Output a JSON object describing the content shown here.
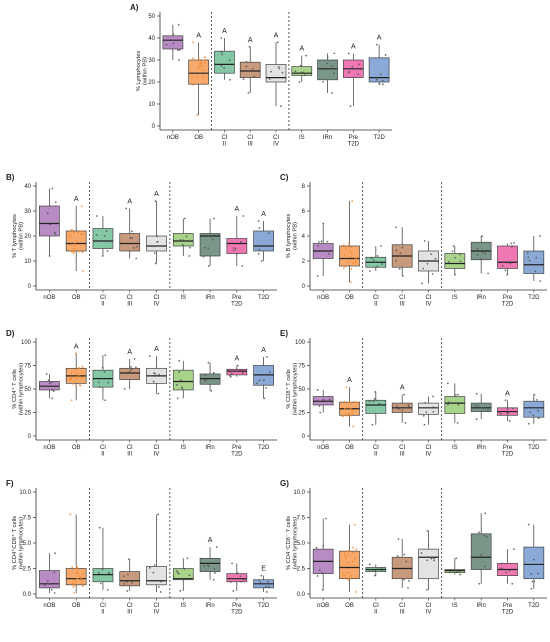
{
  "figure": {
    "groups": [
      "nOB",
      "OB",
      "CI II",
      "CI III",
      "CI IV",
      "IS",
      "IRn",
      "Pre T2D",
      "T2D"
    ],
    "group_colors": [
      "#b98bc4",
      "#f7a96b",
      "#84c8a6",
      "#c79a7e",
      "#e3e3e3",
      "#a9d38a",
      "#7a9688",
      "#ef78b3",
      "#8aa9d6"
    ],
    "point_color": "#f28a2e"
  },
  "chart_data": [
    {
      "panel": "A)",
      "type": "box",
      "ylabel": "% Lymphocytes\n(within PB)",
      "ylim": [
        0,
        50
      ],
      "yticks": [
        0,
        10,
        20,
        30,
        40,
        50
      ],
      "boxes": [
        {
          "q1": 35,
          "median": 39,
          "q3": 41,
          "whislo": 30,
          "whishi": 46,
          "letter": ""
        },
        {
          "q1": 19,
          "median": 24,
          "q3": 30,
          "whislo": 5,
          "whishi": 38,
          "letter": "A"
        },
        {
          "q1": 24,
          "median": 28,
          "q3": 34,
          "whislo": 21,
          "whishi": 40,
          "letter": "A"
        },
        {
          "q1": 22,
          "median": 25,
          "q3": 29,
          "whislo": 15,
          "whishi": 36,
          "letter": "A"
        },
        {
          "q1": 20,
          "median": 22,
          "q3": 28,
          "whislo": 9,
          "whishi": 38,
          "letter": "A"
        },
        {
          "q1": 23,
          "median": 24,
          "q3": 27,
          "whislo": 20,
          "whishi": 32,
          "letter": "A"
        },
        {
          "q1": 21,
          "median": 26,
          "q3": 30,
          "whislo": 15,
          "whishi": 33,
          "letter": ""
        },
        {
          "q1": 22,
          "median": 26,
          "q3": 30,
          "whislo": 9,
          "whishi": 33,
          "letter": "A"
        },
        {
          "q1": 20,
          "median": 22,
          "q3": 31,
          "whislo": 19,
          "whishi": 37,
          "letter": "A"
        }
      ]
    },
    {
      "panel": "B)",
      "type": "box",
      "ylabel": "% T lymphocytes\n(within PB)",
      "ylim": [
        0,
        40
      ],
      "yticks": [
        0,
        10,
        20,
        30,
        40
      ],
      "boxes": [
        {
          "q1": 20,
          "median": 25,
          "q3": 32,
          "whislo": 12,
          "whishi": 39,
          "letter": ""
        },
        {
          "q1": 14,
          "median": 17,
          "q3": 22,
          "whislo": 6,
          "whishi": 32,
          "letter": "A"
        },
        {
          "q1": 15,
          "median": 18,
          "q3": 23,
          "whislo": 12,
          "whishi": 28,
          "letter": ""
        },
        {
          "q1": 14,
          "median": 17,
          "q3": 21,
          "whislo": 11,
          "whishi": 31,
          "letter": "A"
        },
        {
          "q1": 14,
          "median": 16,
          "q3": 20,
          "whislo": 9,
          "whishi": 34,
          "letter": "A"
        },
        {
          "q1": 16,
          "median": 18,
          "q3": 21,
          "whislo": 12,
          "whishi": 27,
          "letter": ""
        },
        {
          "q1": 12,
          "median": 20,
          "q3": 21,
          "whislo": 8,
          "whishi": 27,
          "letter": ""
        },
        {
          "q1": 13,
          "median": 17,
          "q3": 19,
          "whislo": 8,
          "whishi": 28,
          "letter": "A"
        },
        {
          "q1": 14,
          "median": 16,
          "q3": 22,
          "whislo": 10,
          "whishi": 26,
          "letter": "A"
        }
      ]
    },
    {
      "panel": "C)",
      "type": "box",
      "ylabel": "% B lymphocytes\n(within PB)",
      "ylim": [
        0,
        8
      ],
      "yticks": [
        0,
        2,
        4,
        6,
        8
      ],
      "boxes": [
        {
          "q1": 2.2,
          "median": 2.8,
          "q3": 3.4,
          "whislo": 0.8,
          "whishi": 5.0,
          "letter": ""
        },
        {
          "q1": 1.6,
          "median": 2.2,
          "q3": 3.2,
          "whislo": 0.3,
          "whishi": 6.8,
          "letter": ""
        },
        {
          "q1": 1.5,
          "median": 1.9,
          "q3": 2.3,
          "whislo": 1.2,
          "whishi": 3.2,
          "letter": ""
        },
        {
          "q1": 1.5,
          "median": 2.4,
          "q3": 3.3,
          "whislo": 0.8,
          "whishi": 4.7,
          "letter": ""
        },
        {
          "q1": 1.2,
          "median": 2.0,
          "q3": 2.8,
          "whislo": 0.2,
          "whishi": 3.6,
          "letter": ""
        },
        {
          "q1": 1.4,
          "median": 1.8,
          "q3": 2.6,
          "whislo": 0.9,
          "whishi": 3.2,
          "letter": ""
        },
        {
          "q1": 2.1,
          "median": 2.8,
          "q3": 3.5,
          "whislo": 1.0,
          "whishi": 4.0,
          "letter": ""
        },
        {
          "q1": 1.4,
          "median": 1.9,
          "q3": 3.2,
          "whislo": 0.9,
          "whishi": 3.4,
          "letter": ""
        },
        {
          "q1": 1.0,
          "median": 1.7,
          "q3": 2.8,
          "whislo": 0.4,
          "whishi": 4.0,
          "letter": ""
        }
      ]
    },
    {
      "panel": "D)",
      "type": "box",
      "ylabel": "% CD4⁺ T cells\n(within lymphocytes)",
      "ylim": [
        0,
        100
      ],
      "yticks": [
        0,
        25,
        50,
        75,
        100
      ],
      "boxes": [
        {
          "q1": 49,
          "median": 53,
          "q3": 58,
          "whislo": 40,
          "whishi": 66,
          "letter": ""
        },
        {
          "q1": 56,
          "median": 64,
          "q3": 72,
          "whislo": 38,
          "whishi": 88,
          "letter": "A"
        },
        {
          "q1": 52,
          "median": 61,
          "q3": 70,
          "whislo": 38,
          "whishi": 86,
          "letter": ""
        },
        {
          "q1": 60,
          "median": 67,
          "q3": 72,
          "whislo": 50,
          "whishi": 82,
          "letter": "A"
        },
        {
          "q1": 56,
          "median": 64,
          "q3": 72,
          "whislo": 45,
          "whishi": 85,
          "letter": "A"
        },
        {
          "q1": 49,
          "median": 58,
          "q3": 70,
          "whislo": 40,
          "whishi": 80,
          "letter": ""
        },
        {
          "q1": 55,
          "median": 61,
          "q3": 66,
          "whislo": 48,
          "whishi": 78,
          "letter": ""
        },
        {
          "q1": 65,
          "median": 69,
          "q3": 71,
          "whislo": 63,
          "whishi": 75,
          "letter": "A"
        },
        {
          "q1": 54,
          "median": 65,
          "q3": 75,
          "whislo": 40,
          "whishi": 84,
          "letter": "A"
        }
      ]
    },
    {
      "panel": "E)",
      "type": "box",
      "ylabel": "% CD8⁺ T cells\n(within lymphocytes)",
      "ylim": [
        0,
        100
      ],
      "yticks": [
        0,
        25,
        50,
        75,
        100
      ],
      "boxes": [
        {
          "q1": 33,
          "median": 37,
          "q3": 42,
          "whislo": 25,
          "whishi": 49,
          "letter": ""
        },
        {
          "q1": 22,
          "median": 29,
          "q3": 36,
          "whislo": 10,
          "whishi": 52,
          "letter": "A"
        },
        {
          "q1": 24,
          "median": 33,
          "q3": 38,
          "whislo": 12,
          "whishi": 47,
          "letter": ""
        },
        {
          "q1": 25,
          "median": 30,
          "q3": 35,
          "whislo": 14,
          "whishi": 44,
          "letter": "A"
        },
        {
          "q1": 23,
          "median": 30,
          "q3": 35,
          "whislo": 12,
          "whishi": 42,
          "letter": ""
        },
        {
          "q1": 24,
          "median": 35,
          "q3": 42,
          "whislo": 14,
          "whishi": 56,
          "letter": ""
        },
        {
          "q1": 26,
          "median": 30,
          "q3": 35,
          "whislo": 18,
          "whishi": 45,
          "letter": ""
        },
        {
          "q1": 22,
          "median": 26,
          "q3": 30,
          "whislo": 16,
          "whishi": 38,
          "letter": "A"
        },
        {
          "q1": 20,
          "median": 30,
          "q3": 37,
          "whislo": 13,
          "whishi": 44,
          "letter": ""
        }
      ]
    },
    {
      "panel": "F)",
      "type": "box",
      "ylabel": "% CD4⁺CD8⁺ T cells\n(within lymphocytes)",
      "ylim": [
        0,
        10
      ],
      "yticks": [
        0.0,
        2.5,
        5.0,
        7.5,
        10.0
      ],
      "boxes": [
        {
          "q1": 0.6,
          "median": 1.0,
          "q3": 2.3,
          "whislo": 0.1,
          "whishi": 4.0,
          "letter": ""
        },
        {
          "q1": 0.9,
          "median": 1.5,
          "q3": 2.5,
          "whislo": 0.1,
          "whishi": 7.8,
          "letter": ""
        },
        {
          "q1": 1.2,
          "median": 1.9,
          "q3": 2.5,
          "whislo": 0.4,
          "whishi": 6.5,
          "letter": ""
        },
        {
          "q1": 0.8,
          "median": 1.3,
          "q3": 2.2,
          "whislo": 0.3,
          "whishi": 3.4,
          "letter": ""
        },
        {
          "q1": 0.9,
          "median": 1.3,
          "q3": 2.7,
          "whislo": 0.2,
          "whishi": 7.8,
          "letter": ""
        },
        {
          "q1": 1.4,
          "median": 1.5,
          "q3": 2.5,
          "whislo": 0.3,
          "whishi": 3.5,
          "letter": ""
        },
        {
          "q1": 2.2,
          "median": 3.0,
          "q3": 3.5,
          "whislo": 1.4,
          "whishi": 4.6,
          "letter": "A"
        },
        {
          "q1": 1.2,
          "median": 1.5,
          "q3": 2.0,
          "whislo": 0.3,
          "whishi": 3.0,
          "letter": ""
        },
        {
          "q1": 0.6,
          "median": 1.0,
          "q3": 1.4,
          "whislo": 0.2,
          "whishi": 1.8,
          "letter": "E"
        }
      ]
    },
    {
      "panel": "G)",
      "type": "box",
      "ylabel": "% CD4⁻CD8⁻ T cells\n(within lymphocytes)",
      "ylim": [
        0,
        10
      ],
      "yticks": [
        0.0,
        2.5,
        5.0,
        7.5,
        10.0
      ],
      "boxes": [
        {
          "q1": 2.0,
          "median": 3.2,
          "q3": 4.4,
          "whislo": 0.4,
          "whishi": 7.4,
          "letter": ""
        },
        {
          "q1": 1.5,
          "median": 2.6,
          "q3": 4.2,
          "whislo": 0.2,
          "whishi": 6.8,
          "letter": ""
        },
        {
          "q1": 2.2,
          "median": 2.4,
          "q3": 2.6,
          "whislo": 1.8,
          "whishi": 2.9,
          "letter": ""
        },
        {
          "q1": 1.5,
          "median": 2.5,
          "q3": 3.6,
          "whislo": 0.6,
          "whishi": 5.4,
          "letter": ""
        },
        {
          "q1": 1.5,
          "median": 3.6,
          "q3": 4.4,
          "whislo": 0.4,
          "whishi": 6.2,
          "letter": ""
        },
        {
          "q1": 2.1,
          "median": 2.3,
          "q3": 2.4,
          "whislo": 1.9,
          "whishi": 3.5,
          "letter": ""
        },
        {
          "q1": 2.4,
          "median": 3.6,
          "q3": 5.9,
          "whislo": 1.0,
          "whishi": 7.9,
          "letter": ""
        },
        {
          "q1": 1.8,
          "median": 2.4,
          "q3": 3.0,
          "whislo": 1.0,
          "whishi": 4.4,
          "letter": ""
        },
        {
          "q1": 1.5,
          "median": 2.9,
          "q3": 4.6,
          "whislo": 0.5,
          "whishi": 6.8,
          "letter": ""
        }
      ]
    }
  ]
}
